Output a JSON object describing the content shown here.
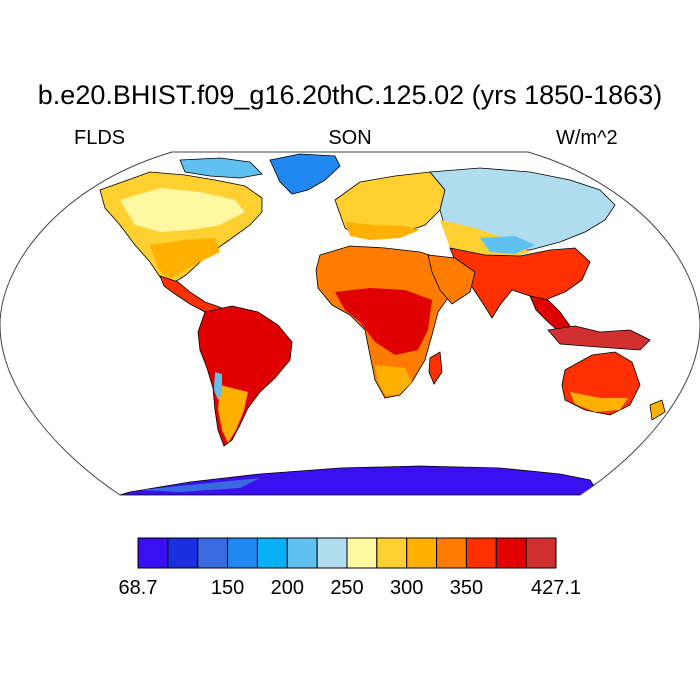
{
  "title": "b.e20.BHIST.f09_g16.20thC.125.02 (yrs 1850-1863)",
  "subtitle_left": "FLDS",
  "subtitle_center": "SON",
  "subtitle_right": "W/m^2",
  "colors": {
    "ocean": "#ffffff",
    "outline": "#000000"
  },
  "colorbar": {
    "colors": [
      "#3a10f0",
      "#1a30e0",
      "#3a6ae0",
      "#2088f0",
      "#08b0f8",
      "#60c0f0",
      "#b0dcf0",
      "#fff8a0",
      "#ffd030",
      "#ffb000",
      "#ff7c00",
      "#ff3000",
      "#e00000",
      "#d03030"
    ],
    "labels": [
      {
        "text": "68.7",
        "boundary": 0
      },
      {
        "text": "150",
        "boundary": 3
      },
      {
        "text": "200",
        "boundary": 5
      },
      {
        "text": "250",
        "boundary": 7
      },
      {
        "text": "300",
        "boundary": 9
      },
      {
        "text": "350",
        "boundary": 11
      },
      {
        "text": "427.1",
        "boundary": 14
      }
    ]
  }
}
